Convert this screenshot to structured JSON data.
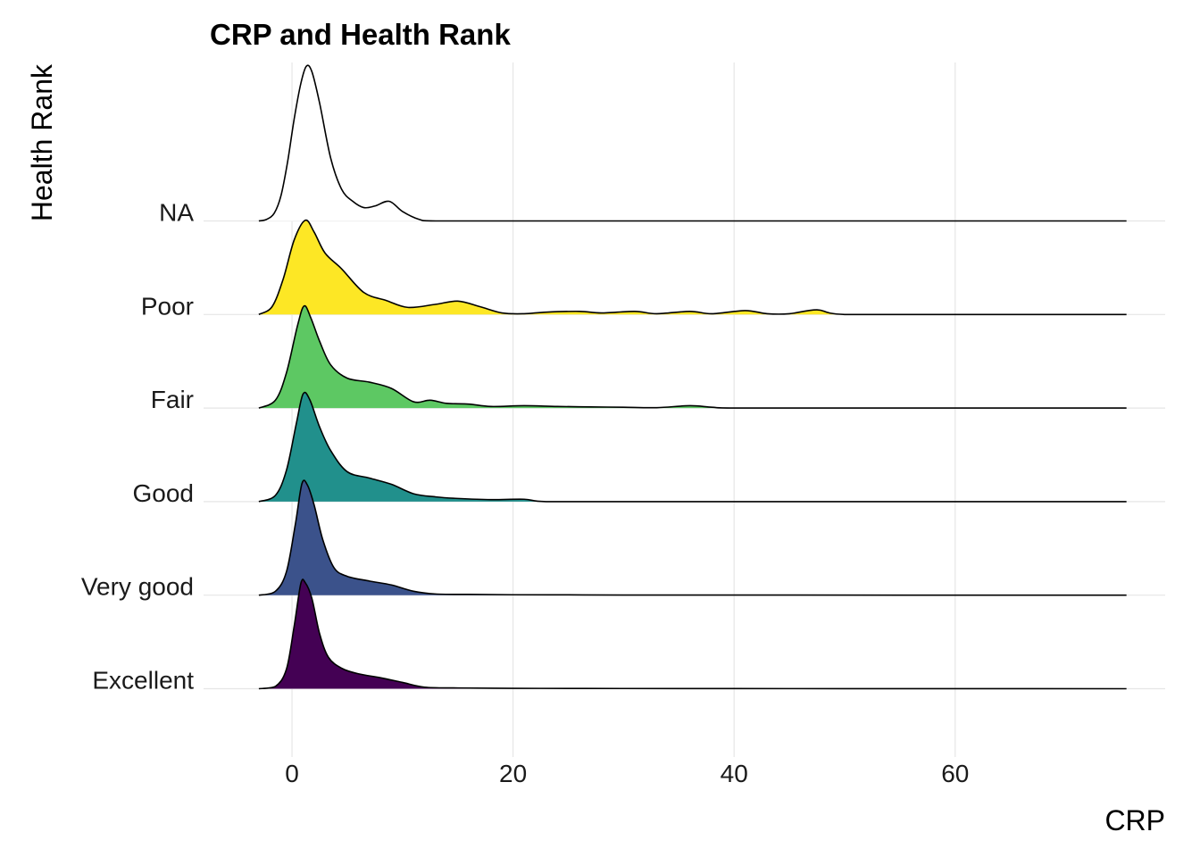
{
  "chart_data": {
    "type": "ridgeline",
    "title": "CRP and Health Rank",
    "xlabel": "CRP",
    "ylabel": "Health Rank",
    "xlim": [
      -8,
      79
    ],
    "x_ticks": [
      0,
      20,
      40,
      60
    ],
    "x_tick_labels": [
      "0",
      "20",
      "40",
      "60"
    ],
    "grid": true,
    "x_range_drawn": [
      -3,
      75.5
    ],
    "categories": [
      "Excellent",
      "Very good",
      "Good",
      "Fair",
      "Poor",
      "NA"
    ],
    "series": [
      {
        "name": "Excellent",
        "fill": "#440154",
        "points": [
          [
            -3,
            0
          ],
          [
            -1.5,
            0.03
          ],
          [
            -0.5,
            0.25
          ],
          [
            0.2,
            0.8
          ],
          [
            0.8,
            1.34
          ],
          [
            1.2,
            1.35
          ],
          [
            1.8,
            1.15
          ],
          [
            2.5,
            0.7
          ],
          [
            3.3,
            0.4
          ],
          [
            4.5,
            0.26
          ],
          [
            6,
            0.19
          ],
          [
            8,
            0.14
          ],
          [
            10,
            0.08
          ],
          [
            12,
            0.02
          ],
          [
            15,
            0.01
          ],
          [
            20,
            0.005
          ],
          [
            25,
            0.004
          ],
          [
            30,
            0.003
          ],
          [
            40,
            0.002
          ],
          [
            50,
            0.001
          ],
          [
            60,
            0.001
          ],
          [
            75.5,
            0
          ]
        ]
      },
      {
        "name": "Very good",
        "fill": "#3B528B",
        "points": [
          [
            -3,
            0
          ],
          [
            -1.5,
            0.05
          ],
          [
            -0.5,
            0.3
          ],
          [
            0.3,
            0.9
          ],
          [
            0.9,
            1.42
          ],
          [
            1.4,
            1.4
          ],
          [
            2,
            1.15
          ],
          [
            2.8,
            0.7
          ],
          [
            3.8,
            0.35
          ],
          [
            5,
            0.24
          ],
          [
            7,
            0.18
          ],
          [
            9,
            0.13
          ],
          [
            11,
            0.05
          ],
          [
            13,
            0.015
          ],
          [
            16,
            0.01
          ],
          [
            20,
            0.005
          ],
          [
            25,
            0.004
          ],
          [
            30,
            0.002
          ],
          [
            45,
            0.001
          ],
          [
            75.5,
            0
          ]
        ]
      },
      {
        "name": "Good",
        "fill": "#21908C",
        "points": [
          [
            -3,
            0
          ],
          [
            -1.5,
            0.08
          ],
          [
            -0.5,
            0.4
          ],
          [
            0.4,
            1.0
          ],
          [
            1,
            1.37
          ],
          [
            1.6,
            1.3
          ],
          [
            2.5,
            0.95
          ],
          [
            3.5,
            0.65
          ],
          [
            5,
            0.38
          ],
          [
            7,
            0.3
          ],
          [
            9,
            0.22
          ],
          [
            11,
            0.1
          ],
          [
            13,
            0.06
          ],
          [
            15,
            0.04
          ],
          [
            18,
            0.025
          ],
          [
            21,
            0.03
          ],
          [
            23,
            0.0
          ],
          [
            30,
            0.0
          ],
          [
            75.5,
            0
          ]
        ]
      },
      {
        "name": "Fair",
        "fill": "#5DC863",
        "points": [
          [
            -3,
            0
          ],
          [
            -1.5,
            0.1
          ],
          [
            -0.5,
            0.45
          ],
          [
            0.5,
            1.05
          ],
          [
            1.1,
            1.3
          ],
          [
            1.7,
            1.15
          ],
          [
            2.5,
            0.85
          ],
          [
            3.5,
            0.55
          ],
          [
            5,
            0.38
          ],
          [
            7,
            0.33
          ],
          [
            9,
            0.25
          ],
          [
            11,
            0.08
          ],
          [
            12.5,
            0.1
          ],
          [
            14,
            0.06
          ],
          [
            16,
            0.05
          ],
          [
            18,
            0.02
          ],
          [
            21,
            0.03
          ],
          [
            24,
            0.02
          ],
          [
            27,
            0.015
          ],
          [
            30,
            0.01
          ],
          [
            33,
            0.005
          ],
          [
            36,
            0.03
          ],
          [
            38,
            0.01
          ],
          [
            40,
            0.0
          ],
          [
            50,
            0.0
          ],
          [
            75.5,
            0
          ]
        ]
      },
      {
        "name": "Poor",
        "fill": "#FDE725",
        "points": [
          [
            -3,
            0
          ],
          [
            -1.8,
            0.1
          ],
          [
            -0.8,
            0.45
          ],
          [
            0.2,
            0.95
          ],
          [
            1.2,
            1.2
          ],
          [
            2,
            1.05
          ],
          [
            3,
            0.78
          ],
          [
            4.5,
            0.58
          ],
          [
            6.5,
            0.28
          ],
          [
            8.5,
            0.18
          ],
          [
            10.5,
            0.09
          ],
          [
            13,
            0.13
          ],
          [
            15,
            0.17
          ],
          [
            17,
            0.1
          ],
          [
            19,
            0.02
          ],
          [
            21,
            0.01
          ],
          [
            23,
            0.03
          ],
          [
            26,
            0.04
          ],
          [
            28,
            0.02
          ],
          [
            31,
            0.04
          ],
          [
            33,
            0.01
          ],
          [
            36,
            0.04
          ],
          [
            38,
            0.01
          ],
          [
            41,
            0.05
          ],
          [
            43,
            0.01
          ],
          [
            45,
            0.01
          ],
          [
            47.5,
            0.06
          ],
          [
            50,
            0.0
          ],
          [
            60,
            0.0
          ],
          [
            75.5,
            0
          ]
        ]
      },
      {
        "name": "NA",
        "fill": "#FFFFFF",
        "points": [
          [
            -3,
            0
          ],
          [
            -2.3,
            0.02
          ],
          [
            -1.6,
            0.1
          ],
          [
            -1,
            0.32
          ],
          [
            -0.4,
            0.75
          ],
          [
            0.2,
            1.3
          ],
          [
            0.8,
            1.75
          ],
          [
            1.3,
            1.97
          ],
          [
            1.8,
            1.9
          ],
          [
            2.5,
            1.5
          ],
          [
            3.5,
            0.8
          ],
          [
            4.5,
            0.4
          ],
          [
            5.5,
            0.25
          ],
          [
            6.5,
            0.17
          ],
          [
            7.5,
            0.19
          ],
          [
            8.8,
            0.25
          ],
          [
            10,
            0.12
          ],
          [
            11.5,
            0.02
          ],
          [
            13,
            0.0
          ],
          [
            20,
            0.0
          ],
          [
            75.5,
            0
          ]
        ]
      }
    ]
  }
}
